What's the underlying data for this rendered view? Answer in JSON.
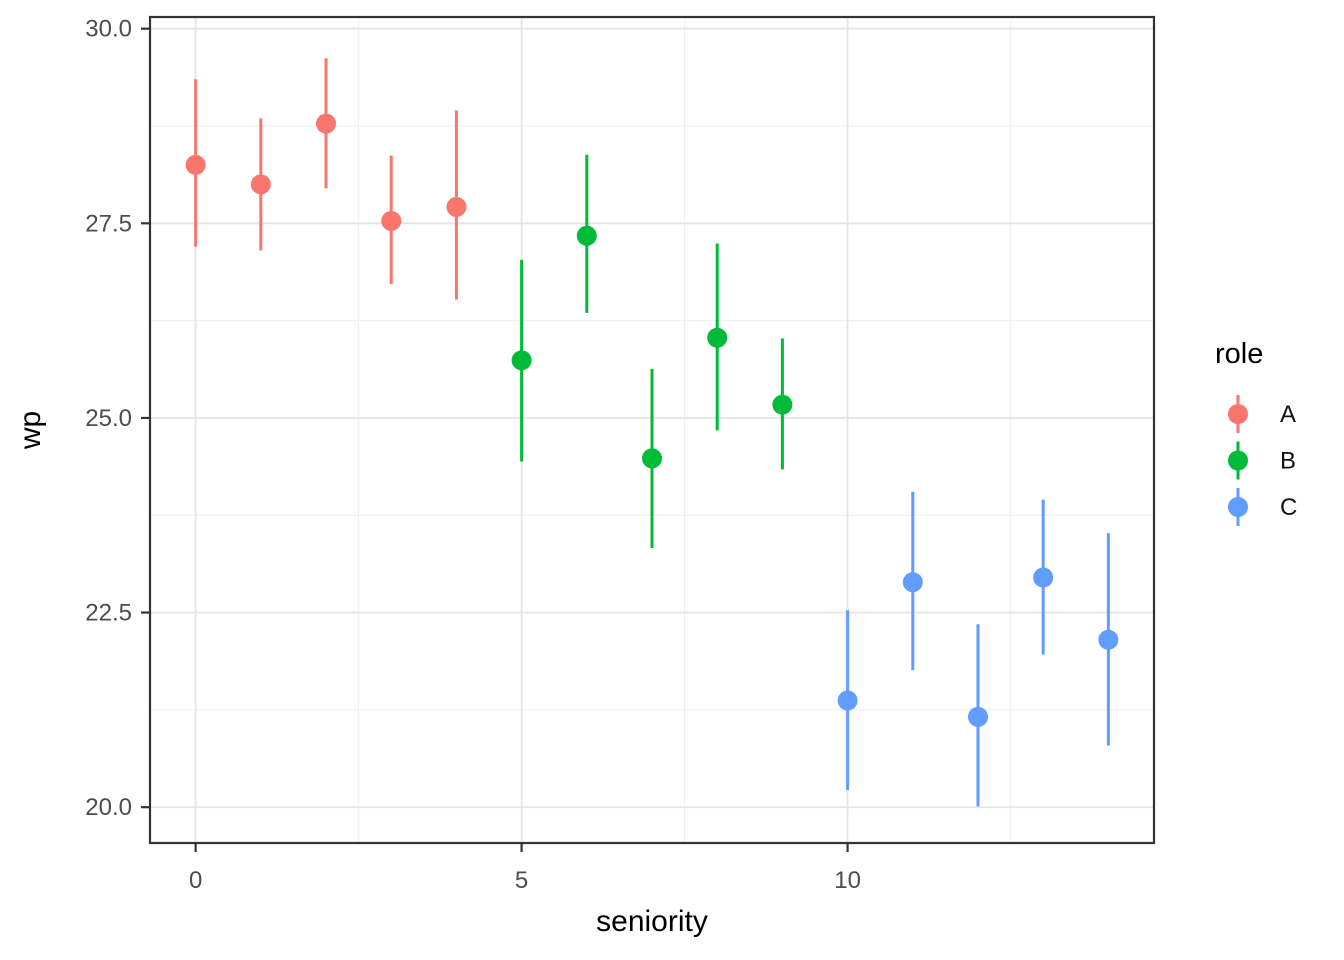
{
  "figure": {
    "background_color": "#FFFFFF",
    "panel_background_color": "#FFFFFF",
    "panel_border_color": "#333333",
    "grid_major_color": "#E5E5E5",
    "grid_minor_color": "#F0F0F0",
    "tick_mark_color": "#333333",
    "tick_label_color": "#4D4D4D"
  },
  "chart_data": {
    "type": "scatter",
    "subtype": "pointrange",
    "title": "",
    "xlabel": "seniority",
    "ylabel": "wp",
    "xlim": [
      -0.7,
      14.7
    ],
    "ylim": [
      19.54,
      30.15
    ],
    "x_ticks": [
      0,
      5,
      10
    ],
    "x_tick_labels": [
      "0",
      "5",
      "10"
    ],
    "y_ticks": [
      20.0,
      22.5,
      25.0,
      27.5,
      30.0
    ],
    "y_tick_labels": [
      "20.0",
      "22.5",
      "25.0",
      "27.5",
      "30.0"
    ],
    "grid": "major and minor gridlines on, white panel, dark panel border",
    "legend": {
      "title": "role",
      "position": "right",
      "entries": [
        {
          "label": "A",
          "color": "#F8766D"
        },
        {
          "label": "B",
          "color": "#00BA38"
        },
        {
          "label": "C",
          "color": "#619CFF"
        }
      ]
    },
    "series": [
      {
        "name": "A",
        "color": "#F8766D",
        "points": [
          {
            "x": 0,
            "y": 28.25,
            "ymin": 27.2,
            "ymax": 29.35
          },
          {
            "x": 1,
            "y": 28.0,
            "ymin": 27.15,
            "ymax": 28.85
          },
          {
            "x": 2,
            "y": 28.78,
            "ymin": 27.95,
            "ymax": 29.62
          },
          {
            "x": 3,
            "y": 27.53,
            "ymin": 26.72,
            "ymax": 28.37
          },
          {
            "x": 4,
            "y": 27.71,
            "ymin": 26.52,
            "ymax": 28.95
          }
        ]
      },
      {
        "name": "B",
        "color": "#00BA38",
        "points": [
          {
            "x": 5,
            "y": 25.74,
            "ymin": 24.44,
            "ymax": 27.03
          },
          {
            "x": 6,
            "y": 27.34,
            "ymin": 26.35,
            "ymax": 28.38
          },
          {
            "x": 7,
            "y": 24.48,
            "ymin": 23.33,
            "ymax": 25.63
          },
          {
            "x": 8,
            "y": 26.03,
            "ymin": 24.84,
            "ymax": 27.24
          },
          {
            "x": 9,
            "y": 25.17,
            "ymin": 24.34,
            "ymax": 26.02
          }
        ]
      },
      {
        "name": "C",
        "color": "#619CFF",
        "points": [
          {
            "x": 10,
            "y": 21.37,
            "ymin": 20.22,
            "ymax": 22.53
          },
          {
            "x": 11,
            "y": 22.89,
            "ymin": 21.76,
            "ymax": 24.05
          },
          {
            "x": 12,
            "y": 21.16,
            "ymin": 20.01,
            "ymax": 22.35
          },
          {
            "x": 13,
            "y": 22.95,
            "ymin": 21.96,
            "ymax": 23.95
          },
          {
            "x": 14,
            "y": 22.15,
            "ymin": 20.79,
            "ymax": 23.52
          }
        ]
      }
    ]
  }
}
